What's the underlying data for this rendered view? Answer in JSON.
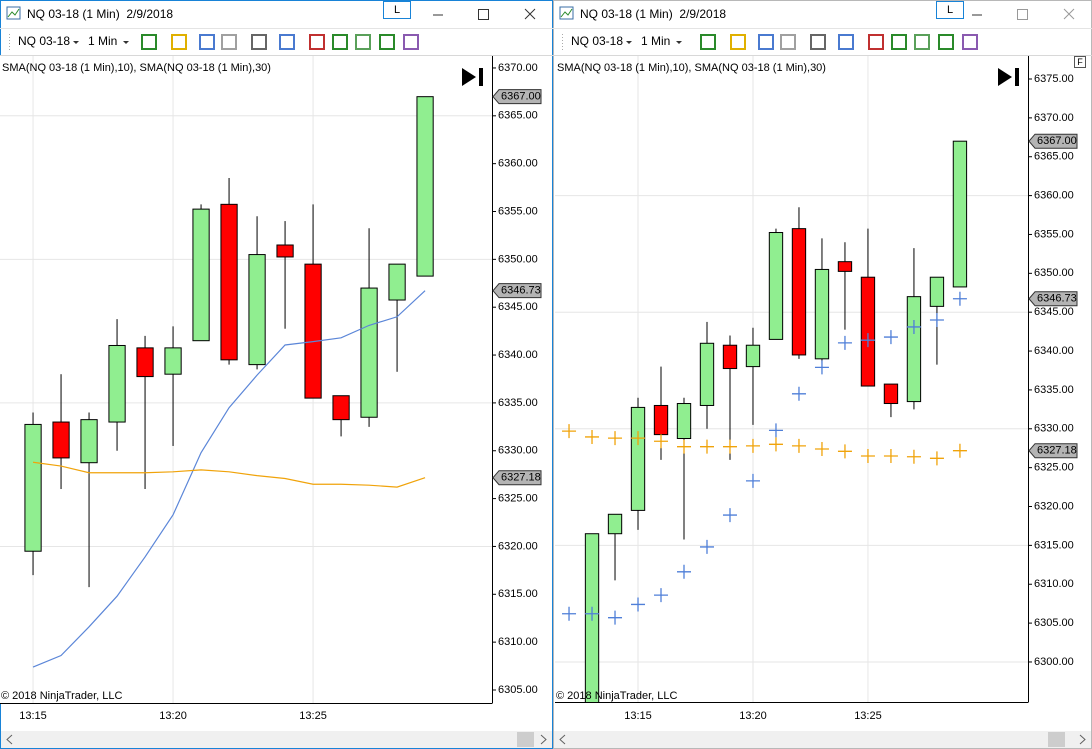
{
  "windows": [
    {
      "title": "NQ 03-18 (1 Min)  2/9/2018",
      "button": "L",
      "toolbar": {
        "instrument": "NQ 03-18",
        "interval": "1 Min"
      },
      "indicator_label": "SMA(NQ 03-18 (1 Min),10), SMA(NQ 03-18 (1 Min),30)",
      "copyright": "© 2018 NinjaTrader, LLC",
      "chart_data": {
        "type": "candlestick",
        "x": [
          795,
          796,
          797,
          798,
          799,
          800,
          801,
          802,
          803,
          804,
          805,
          806,
          807,
          808,
          809
        ],
        "open": [
          6319.5,
          6333,
          6328.75,
          6333,
          6340.75,
          6338,
          6341.5,
          6355.75,
          6339,
          6351.5,
          6349.5,
          6335.75,
          6333.5,
          6345.75,
          6348.25
        ],
        "high": [
          6334,
          6338,
          6334,
          6343.75,
          6342,
          6343,
          6355.75,
          6358.5,
          6354.5,
          6354,
          6355.75,
          6335.75,
          6353.25,
          6349.5,
          6367
        ],
        "low": [
          6317,
          6326,
          6315.75,
          6330,
          6326,
          6330.5,
          6341.5,
          6339,
          6338.5,
          6342.75,
          6335.5,
          6331.5,
          6332.5,
          6338.25,
          6348.25
        ],
        "close": [
          6332.75,
          6329.25,
          6333.25,
          6341,
          6337.75,
          6340.75,
          6355.25,
          6339.5,
          6350.5,
          6350.25,
          6335.5,
          6333.25,
          6347,
          6349.5,
          6367
        ],
        "up_color": "#90ee90",
        "down_color": "#ff0000",
        "series": [
          {
            "color": "#5b86d8",
            "style": "line",
            "values": [
              6307.4,
              6308.6,
              6311.6,
              6314.8,
              6318.9,
              6323.3,
              6329.8,
              6334.5,
              6337.9,
              6341.05,
              6341.4,
              6341.8,
              6343.1,
              6344.0,
              6346.73
            ]
          },
          {
            "color": "#f0a30a",
            "style": "line",
            "values": [
              6328.8,
              6328.4,
              6327.7,
              6327.7,
              6327.7,
              6327.8,
              6328.0,
              6327.8,
              6327.4,
              6327.1,
              6326.5,
              6326.5,
              6326.4,
              6326.2,
              6327.18
            ]
          }
        ],
        "price_markers": [
          {
            "value": 6367,
            "label": "6367.00"
          },
          {
            "value": 6346.73,
            "label": "6346.73"
          },
          {
            "value": 6327.18,
            "label": "6327.18"
          }
        ],
        "marker_color": "#b4b4b4",
        "xlim": [
          793.82,
          811.39
        ],
        "xticks": [
          {
            "value": 795,
            "label": "13:15"
          },
          {
            "value": 800,
            "label": "13:20"
          },
          {
            "value": 805,
            "label": "13:25"
          }
        ],
        "ylim": [
          6303.64,
          6371.25
        ],
        "yticks": [
          {
            "value": 6305,
            "label": "6305.00"
          },
          {
            "value": 6310,
            "label": "6310.00"
          },
          {
            "value": 6315,
            "label": "6315.00"
          },
          {
            "value": 6320,
            "label": "6320.00"
          },
          {
            "value": 6325,
            "label": "6325.00"
          },
          {
            "value": 6330,
            "label": "6330.00"
          },
          {
            "value": 6335,
            "label": "6335.00"
          },
          {
            "value": 6340,
            "label": "6340.00"
          },
          {
            "value": 6345,
            "label": "6345.00"
          },
          {
            "value": 6350,
            "label": "6350.00"
          },
          {
            "value": 6355,
            "label": "6355.00"
          },
          {
            "value": 6360,
            "label": "6360.00"
          },
          {
            "value": 6365,
            "label": "6365.00"
          },
          {
            "value": 6370,
            "label": "6370.00"
          }
        ],
        "ygrid": [
          6320,
          6335,
          6350,
          6365
        ]
      }
    },
    {
      "title": "NQ 03-18 (1 Min)  2/9/2018",
      "button": "L",
      "axis_button": "F",
      "toolbar": {
        "instrument": "NQ 03-18",
        "interval": "1 Min"
      },
      "indicator_label": "SMA(NQ 03-18 (1 Min),10), SMA(NQ 03-18 (1 Min),30)",
      "copyright": "© 2018 NinjaTrader, LLC",
      "chart_data": {
        "type": "candlestick",
        "x": [
          792,
          793,
          794,
          795,
          796,
          797,
          798,
          799,
          800,
          801,
          802,
          803,
          804,
          805,
          806,
          807,
          808,
          809
        ],
        "open": [
          null,
          6294,
          6316.5,
          6319.5,
          6333,
          6328.75,
          6333,
          6340.75,
          6338,
          6341.5,
          6355.75,
          6339,
          6351.5,
          6349.5,
          6335.75,
          6333.5,
          6345.75,
          6348.25
        ],
        "high": [
          null,
          6316.5,
          6319,
          6334,
          6338,
          6334,
          6343.75,
          6342,
          6343,
          6355.75,
          6358.5,
          6354.5,
          6354,
          6355.75,
          6335.75,
          6353.25,
          6349.5,
          6367
        ],
        "low": [
          null,
          6293,
          6310.5,
          6317,
          6326,
          6315.75,
          6330,
          6326,
          6330.5,
          6341.5,
          6339,
          6338.5,
          6342.75,
          6335.5,
          6331.5,
          6332.5,
          6338.25,
          6348.25
        ],
        "close": [
          null,
          6316.5,
          6319,
          6332.75,
          6329.25,
          6333.25,
          6341,
          6337.75,
          6340.75,
          6355.25,
          6339.5,
          6350.5,
          6350.25,
          6335.5,
          6333.25,
          6347,
          6349.5,
          6367
        ],
        "up_color": "#90ee90",
        "down_color": "#ff0000",
        "series": [
          {
            "color": "#4f7fd8",
            "style": "cross",
            "values": [
              6306.2,
              6306.2,
              6305.7,
              6307.4,
              6308.6,
              6311.6,
              6314.8,
              6318.9,
              6323.3,
              6329.8,
              6334.5,
              6337.9,
              6341.05,
              6341.4,
              6341.8,
              6343.1,
              6344.0,
              6346.73
            ]
          },
          {
            "color": "#f0a30a",
            "style": "cross",
            "values": [
              6329.7,
              6328.95,
              6328.8,
              6328.8,
              6328.4,
              6327.7,
              6327.7,
              6327.7,
              6327.8,
              6328.0,
              6327.8,
              6327.4,
              6327.1,
              6326.5,
              6326.5,
              6326.4,
              6326.2,
              6327.18
            ]
          }
        ],
        "price_markers": [
          {
            "value": 6367,
            "label": "6367.00"
          },
          {
            "value": 6346.73,
            "label": "6346.73"
          },
          {
            "value": 6327.18,
            "label": "6327.18"
          }
        ],
        "marker_color": "#b4b4b4",
        "xlim": [
          791.39,
          811.96
        ],
        "xticks": [
          {
            "value": 795,
            "label": "13:15"
          },
          {
            "value": 800,
            "label": "13:20"
          },
          {
            "value": 805,
            "label": "13:25"
          }
        ],
        "ylim": [
          6294.85,
          6377.96
        ],
        "yticks": [
          {
            "value": 6300,
            "label": "6300.00"
          },
          {
            "value": 6305,
            "label": "6305.00"
          },
          {
            "value": 6310,
            "label": "6310.00"
          },
          {
            "value": 6315,
            "label": "6315.00"
          },
          {
            "value": 6320,
            "label": "6320.00"
          },
          {
            "value": 6325,
            "label": "6325.00"
          },
          {
            "value": 6330,
            "label": "6330.00"
          },
          {
            "value": 6335,
            "label": "6335.00"
          },
          {
            "value": 6340,
            "label": "6340.00"
          },
          {
            "value": 6345,
            "label": "6345.00"
          },
          {
            "value": 6350,
            "label": "6350.00"
          },
          {
            "value": 6355,
            "label": "6355.00"
          },
          {
            "value": 6360,
            "label": "6360.00"
          },
          {
            "value": 6365,
            "label": "6365.00"
          },
          {
            "value": 6370,
            "label": "6370.00"
          },
          {
            "value": 6375,
            "label": "6375.00"
          }
        ],
        "ygrid": [
          6300,
          6315,
          6330,
          6345,
          6360
        ]
      }
    }
  ]
}
